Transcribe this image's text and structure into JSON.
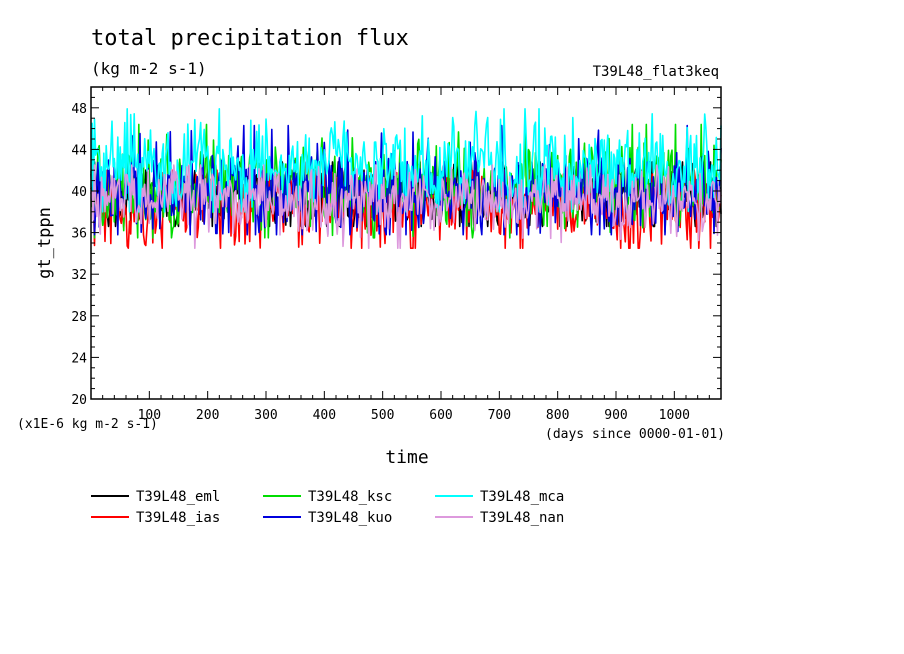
{
  "chart_data": {
    "type": "line",
    "title": "total precipitation flux",
    "units": "(kg m-2 s-1)",
    "experiment_label": "T39L48_flat3keq",
    "ylabel": "gt_tppn",
    "xlabel": "time",
    "y_scale_note": "(x1E-6 kg m-2 s-1)",
    "x_unit_note": "(days since 0000-01-01)",
    "xlim": [
      0,
      1080
    ],
    "ylim": [
      20,
      50
    ],
    "x_ticks": [
      100,
      200,
      300,
      400,
      500,
      600,
      700,
      800,
      900,
      1000
    ],
    "x_tick_labels": [
      "100",
      "200",
      "300",
      "400",
      "500",
      "600",
      "700",
      "800",
      "900",
      "1000"
    ],
    "y_ticks": [
      20,
      24,
      28,
      32,
      36,
      40,
      44,
      48
    ],
    "y_tick_labels": [
      "20",
      "24",
      "28",
      "32",
      "36",
      "40",
      "44",
      "48"
    ],
    "grid": false,
    "legend_position": "bottom",
    "series": [
      {
        "name": "T39L48_eml",
        "color": "#000000",
        "mean": 39.5,
        "spread": 1.7,
        "low": 36.6,
        "high": 42.8
      },
      {
        "name": "T39L48_ias",
        "color": "#ff0000",
        "mean": 38.6,
        "spread": 1.9,
        "low": 34.5,
        "high": 42.0
      },
      {
        "name": "T39L48_ksc",
        "color": "#00dd00",
        "mean": 40.5,
        "spread": 2.0,
        "low": 35.5,
        "high": 46.4
      },
      {
        "name": "T39L48_kuo",
        "color": "#0000dd",
        "mean": 40.2,
        "spread": 2.0,
        "low": 35.8,
        "high": 46.3
      },
      {
        "name": "T39L48_mca",
        "color": "#00ffff",
        "mean": 42.5,
        "spread": 2.0,
        "low": 38.0,
        "high": 47.9
      },
      {
        "name": "T39L48_nan",
        "color": "#dd99dd",
        "mean": 39.2,
        "spread": 1.5,
        "low": 34.5,
        "high": 42.5
      }
    ]
  }
}
